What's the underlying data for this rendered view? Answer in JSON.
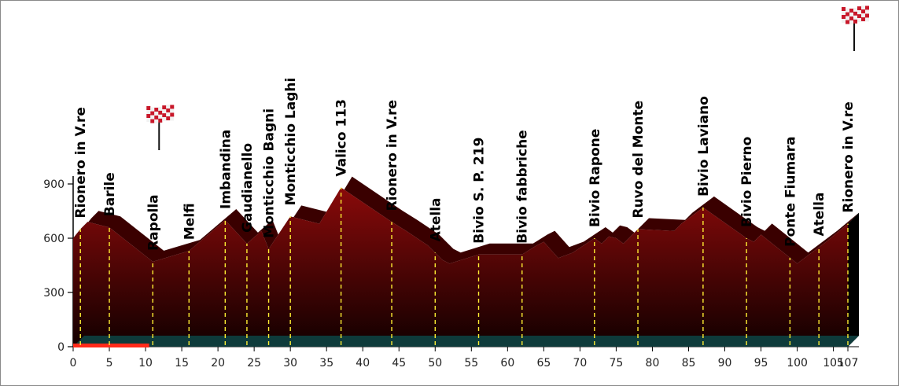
{
  "chart_data": {
    "type": "area",
    "title": "",
    "xlabel": "",
    "ylabel": "",
    "xlim": [
      0,
      107
    ],
    "ylim": [
      0,
      900
    ],
    "x_ticks": [
      0,
      5,
      10,
      15,
      20,
      25,
      30,
      35,
      40,
      45,
      50,
      55,
      60,
      65,
      70,
      75,
      80,
      85,
      90,
      95,
      100,
      105,
      107
    ],
    "y_ticks": [
      0,
      300,
      600,
      900
    ],
    "profile": {
      "x": [
        0,
        1,
        2,
        5,
        11,
        16,
        21,
        24,
        26,
        27,
        30,
        34,
        37,
        44,
        46,
        49,
        51,
        52,
        56,
        62,
        64,
        65,
        67,
        69,
        72,
        73,
        74,
        75,
        76,
        78,
        83,
        84,
        87,
        93,
        94,
        95,
        100,
        103,
        104,
        107
      ],
      "y": [
        600,
        650,
        690,
        660,
        470,
        530,
        700,
        570,
        640,
        540,
        720,
        680,
        880,
        690,
        640,
        560,
        480,
        460,
        510,
        510,
        560,
        580,
        490,
        520,
        600,
        570,
        610,
        600,
        570,
        650,
        640,
        680,
        770,
        600,
        580,
        620,
        460,
        550,
        580,
        680
      ]
    },
    "locations": [
      {
        "name": "Rionero in V.re",
        "km": 1
      },
      {
        "name": "Barile",
        "km": 5
      },
      {
        "name": "Rapolla",
        "km": 11
      },
      {
        "name": "Melfi",
        "km": 16
      },
      {
        "name": "Imbandina",
        "km": 21
      },
      {
        "name": "Gaudianello",
        "km": 24
      },
      {
        "name": "Monticchio Bagni",
        "km": 27
      },
      {
        "name": "Monticchio Laghi",
        "km": 30
      },
      {
        "name": "Valico 113",
        "km": 37
      },
      {
        "name": "Rionero in V.re",
        "km": 44
      },
      {
        "name": "Atella",
        "km": 50
      },
      {
        "name": "Bivio S. P. 219",
        "km": 56
      },
      {
        "name": "Bivio fabbriche",
        "km": 62
      },
      {
        "name": "Bivio Rapone",
        "km": 72
      },
      {
        "name": "Ruvo del Monte",
        "km": 78
      },
      {
        "name": "Bivio Laviano",
        "km": 87
      },
      {
        "name": "Bivio Pierno",
        "km": 93
      },
      {
        "name": "Ponte Fiumara",
        "km": 99
      },
      {
        "name": "Atella",
        "km": 103
      },
      {
        "name": "Rionero in V.re",
        "km": 107
      }
    ],
    "flags": [
      {
        "km": 11,
        "icon": "checkered-flag-icon"
      },
      {
        "km": 107,
        "icon": "checkered-flag-icon"
      }
    ],
    "base_segment": {
      "start_km": 0,
      "end_km": 10.5,
      "color": "#ff2a1a"
    },
    "colors": {
      "fill_top": "#8a0a0a",
      "fill_bottom": "#120000",
      "ridge": "#3a0000",
      "marker": "#ffee33",
      "baseline": "#0e3b3b",
      "flag_red": "#c8182a"
    },
    "grid": false
  }
}
